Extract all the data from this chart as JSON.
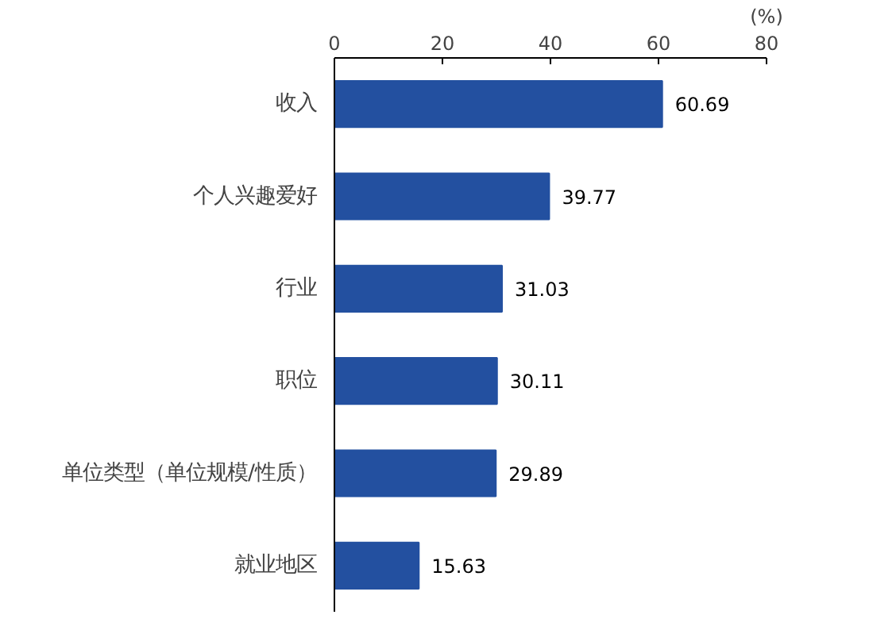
{
  "chart_data": {
    "type": "bar",
    "orientation": "horizontal",
    "xlabel": "(%)",
    "categories": [
      "收入",
      "个人兴趣爱好",
      "行业",
      "职位",
      "单位类型（单位规模/性质）",
      "就业地区"
    ],
    "values": [
      60.69,
      39.77,
      31.03,
      30.11,
      29.89,
      15.63
    ],
    "color": "#2350a0",
    "xlim": [
      0,
      80
    ],
    "xticks": [
      0,
      20,
      40,
      60,
      80
    ],
    "data_labels": true,
    "grid": false
  }
}
